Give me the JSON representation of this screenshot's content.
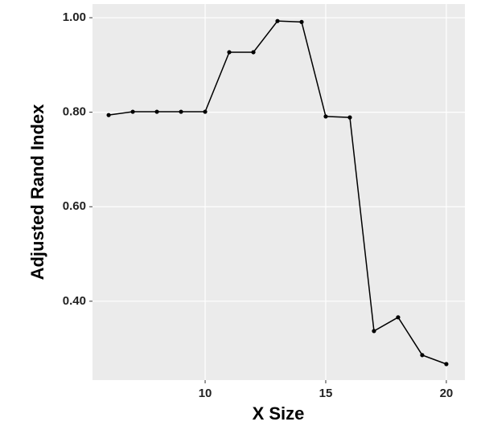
{
  "chart_data": {
    "type": "line",
    "x_label": "X Size",
    "y_label": "Adjusted Rand Index",
    "x": [
      6,
      7,
      8,
      9,
      10,
      11,
      12,
      13,
      14,
      15,
      16,
      17,
      18,
      19,
      20
    ],
    "series": [
      {
        "color": "#000000",
        "values": [
          0.794,
          0.801,
          0.801,
          0.801,
          0.801,
          0.927,
          0.927,
          0.993,
          0.991,
          0.791,
          0.789,
          0.337,
          0.366,
          0.286,
          0.267
        ]
      }
    ],
    "xlim": [
      5.33,
      20.77
    ],
    "ylim": [
      0.233,
      1.029
    ],
    "xticks": [
      10,
      15,
      20
    ],
    "yticks": [
      {
        "value": 0.4,
        "label": "0.40"
      },
      {
        "value": 0.6,
        "label": "0.60"
      },
      {
        "value": 0.8,
        "label": "0.80"
      },
      {
        "value": 1.0,
        "label": "1.00"
      }
    ],
    "grid": true
  }
}
